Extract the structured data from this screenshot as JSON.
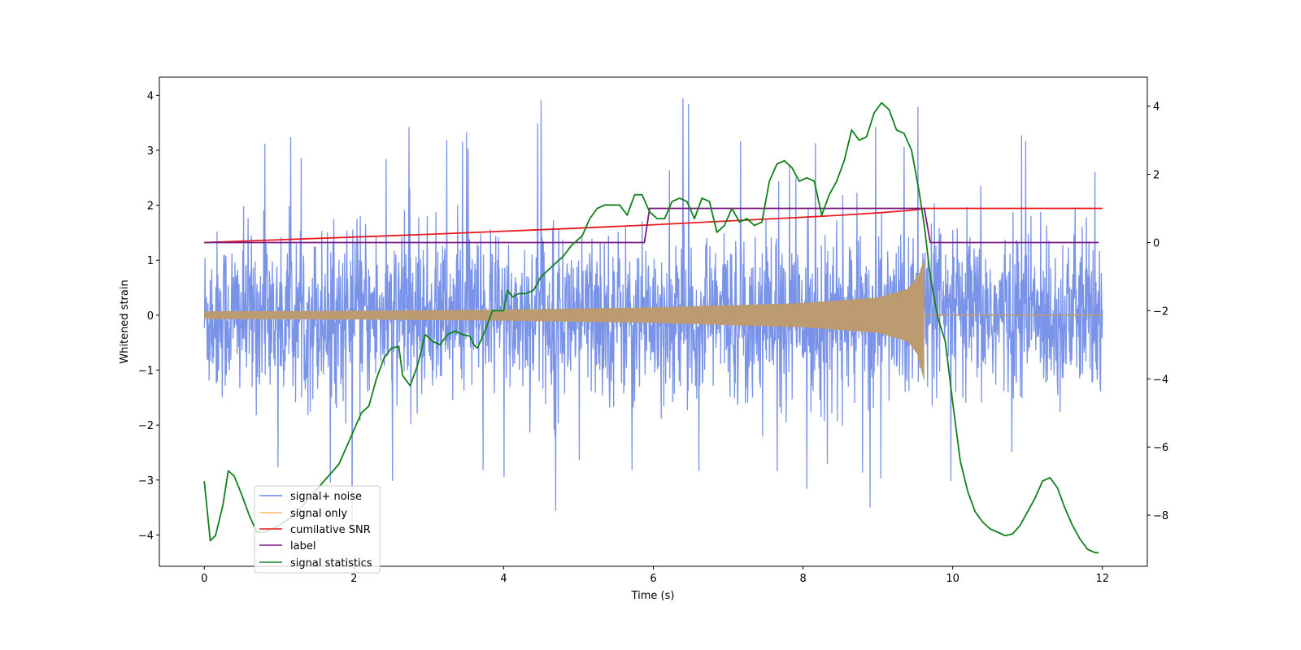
{
  "chart_data": {
    "type": "line",
    "title": "",
    "xlabel": "Time (s)",
    "ylabel": "Whitened strain",
    "y2label": "",
    "xlim": [
      -0.6,
      12.6
    ],
    "ylim": [
      -4.57,
      4.33
    ],
    "y2lim": [
      -9.5,
      4.85
    ],
    "xticks": [
      0,
      2,
      4,
      6,
      8,
      10,
      12
    ],
    "yticks": [
      -4,
      -3,
      -2,
      -1,
      0,
      1,
      2,
      3,
      4
    ],
    "y2ticks": [
      -8,
      -6,
      -4,
      -2,
      0,
      2,
      4
    ],
    "grid": false,
    "legend_position": "lower-left",
    "series": [
      {
        "name": "signal+ noise",
        "axis": "left",
        "color": "#6a87e5",
        "style": "dense noise around 0, std about 0.75, band roughly -2 to 2.3, spikes up to 3.9 and down to -4.2",
        "x_range": [
          0,
          12
        ],
        "noise_std": 0.75
      },
      {
        "name": "signal only",
        "axis": "left",
        "color": "#f9bb6b",
        "style": "chirp envelope growing from about 0.07 at t=0 to about 1.05 at t=9.62, then flat 0 until t=12",
        "envelope": [
          [
            0,
            0.07
          ],
          [
            2,
            0.08
          ],
          [
            4,
            0.1
          ],
          [
            6,
            0.14
          ],
          [
            8,
            0.22
          ],
          [
            9,
            0.32
          ],
          [
            9.4,
            0.48
          ],
          [
            9.55,
            0.75
          ],
          [
            9.62,
            1.05
          ]
        ],
        "merge_time": 9.62,
        "x_range": [
          0,
          12
        ]
      },
      {
        "name": "cumilative SNR",
        "axis": "right",
        "color": "#e8191f",
        "x": [
          0,
          1,
          2,
          3,
          4,
          5,
          6,
          7,
          8,
          8.5,
          9,
          9.3,
          9.5,
          9.62,
          9.63,
          10,
          11,
          12
        ],
        "values": [
          0,
          0.08,
          0.16,
          0.24,
          0.33,
          0.42,
          0.52,
          0.63,
          0.74,
          0.8,
          0.87,
          0.92,
          0.96,
          1.0,
          1.0,
          1.0,
          1.0,
          1.0
        ]
      },
      {
        "name": "label",
        "axis": "right",
        "color": "#7a1a80",
        "x": [
          0,
          5.88,
          5.95,
          9.62,
          9.7,
          11.95
        ],
        "values": [
          0,
          0,
          1,
          1,
          0,
          0
        ]
      },
      {
        "name": "signal statistics",
        "axis": "right",
        "color": "#11801a",
        "x": [
          0,
          0.08,
          0.15,
          0.25,
          0.32,
          0.4,
          0.5,
          0.6,
          0.7,
          0.8,
          1.0,
          1.2,
          1.4,
          1.6,
          1.8,
          2.0,
          2.1,
          2.2,
          2.3,
          2.4,
          2.5,
          2.6,
          2.65,
          2.75,
          2.85,
          2.95,
          3.05,
          3.15,
          3.25,
          3.35,
          3.45,
          3.55,
          3.6,
          3.65,
          3.75,
          3.85,
          3.9,
          4.0,
          4.05,
          4.12,
          4.2,
          4.3,
          4.4,
          4.5,
          4.6,
          4.7,
          4.8,
          4.9,
          5.0,
          5.05,
          5.15,
          5.25,
          5.35,
          5.45,
          5.55,
          5.65,
          5.75,
          5.85,
          5.95,
          6.05,
          6.15,
          6.25,
          6.35,
          6.45,
          6.55,
          6.65,
          6.75,
          6.85,
          6.95,
          7.05,
          7.15,
          7.25,
          7.35,
          7.45,
          7.55,
          7.65,
          7.75,
          7.85,
          7.95,
          8.05,
          8.15,
          8.25,
          8.35,
          8.45,
          8.55,
          8.65,
          8.75,
          8.85,
          8.95,
          9.05,
          9.15,
          9.25,
          9.35,
          9.45,
          9.55,
          9.62,
          9.7,
          9.8,
          9.9,
          10.0,
          10.1,
          10.2,
          10.3,
          10.4,
          10.5,
          10.6,
          10.7,
          10.8,
          10.9,
          11.0,
          11.1,
          11.2,
          11.3,
          11.4,
          11.5,
          11.6,
          11.7,
          11.8,
          11.9,
          11.95
        ],
        "values": [
          -7.0,
          -8.75,
          -8.6,
          -7.7,
          -6.7,
          -6.85,
          -7.4,
          -8.0,
          -8.5,
          -8.5,
          -8.3,
          -8.0,
          -7.5,
          -7.0,
          -6.5,
          -5.5,
          -5.0,
          -4.8,
          -4.0,
          -3.4,
          -3.1,
          -3.05,
          -3.9,
          -4.2,
          -3.6,
          -2.7,
          -2.9,
          -3.0,
          -2.7,
          -2.6,
          -2.7,
          -2.75,
          -3.0,
          -3.1,
          -2.6,
          -2.0,
          -2.0,
          -2.0,
          -1.4,
          -1.6,
          -1.5,
          -1.5,
          -1.4,
          -1.0,
          -0.8,
          -0.6,
          -0.4,
          -0.1,
          0.1,
          0.2,
          0.7,
          1.0,
          1.1,
          1.1,
          1.1,
          0.8,
          1.4,
          1.4,
          0.9,
          0.7,
          0.7,
          1.2,
          1.3,
          1.2,
          0.7,
          1.3,
          1.2,
          0.3,
          0.5,
          1.0,
          0.6,
          0.7,
          0.5,
          0.6,
          1.8,
          2.3,
          2.4,
          2.2,
          1.8,
          1.9,
          1.8,
          0.8,
          1.4,
          1.8,
          2.4,
          3.3,
          3.0,
          3.1,
          3.8,
          4.1,
          3.9,
          3.3,
          3.2,
          2.7,
          1.5,
          0.5,
          -1.0,
          -2.2,
          -2.9,
          -4.7,
          -6.4,
          -7.3,
          -7.9,
          -8.2,
          -8.4,
          -8.5,
          -8.6,
          -8.55,
          -8.3,
          -7.9,
          -7.5,
          -7.0,
          -6.9,
          -7.2,
          -7.8,
          -8.3,
          -8.7,
          -9.0,
          -9.1,
          -9.1
        ]
      }
    ]
  }
}
